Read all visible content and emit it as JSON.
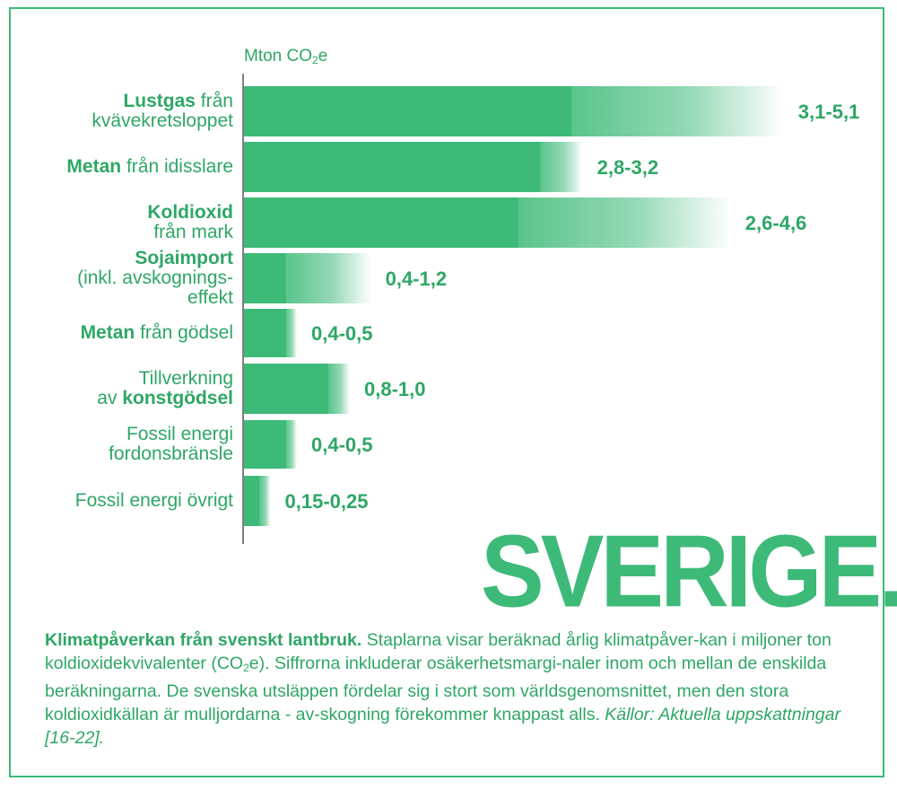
{
  "colors": {
    "accent": "#3dba78",
    "accent_dark": "#2ea765",
    "range": "#7fcf9f"
  },
  "unit_label": {
    "prefix": "Mton CO",
    "sub": "2",
    "suffix": "e"
  },
  "headline": "SVERIGE.",
  "chart_data": {
    "type": "bar",
    "orientation": "horizontal",
    "unit": "Mton CO2e",
    "x_range": [
      0,
      5.2
    ],
    "categories": [
      {
        "bold": "Lustgas",
        "pre": "",
        "post": " från",
        "line2": "kvävekretsloppet",
        "line3": "",
        "low": 3.1,
        "high": 5.1,
        "label": "3,1-5,1"
      },
      {
        "bold": "Metan",
        "pre": "",
        "post": " från idisslare",
        "line2": "",
        "line3": "",
        "low": 2.8,
        "high": 3.2,
        "label": "2,8-3,2"
      },
      {
        "bold": "Koldioxid",
        "pre": "",
        "post": "",
        "line2": "från mark",
        "line3": "",
        "low": 2.6,
        "high": 4.6,
        "label": "2,6-4,6"
      },
      {
        "bold": "Sojaimport",
        "pre": "",
        "post": "",
        "line2": "(inkl. avskognings-",
        "line3": "effekt",
        "low": 0.4,
        "high": 1.2,
        "label": "0,4-1,2"
      },
      {
        "bold": "Metan",
        "pre": "",
        "post": " från gödsel",
        "line2": "",
        "line3": "",
        "low": 0.4,
        "high": 0.5,
        "label": "0,4-0,5"
      },
      {
        "bold": "",
        "pre": "Tillverkning",
        "post": "",
        "line2": "av ",
        "line2bold": "konstgödsel",
        "line3": "",
        "low": 0.8,
        "high": 1.0,
        "label": "0,8-1,0"
      },
      {
        "bold": "",
        "pre": "Fossil energi",
        "post": "",
        "line2": "fordonsbränsle",
        "line3": "",
        "low": 0.4,
        "high": 0.5,
        "label": "0,4-0,5"
      },
      {
        "bold": "",
        "pre": "Fossil energi övrigt",
        "post": "",
        "line2": "",
        "line3": "",
        "low": 0.15,
        "high": 0.25,
        "label": "0,15-0,25"
      }
    ]
  },
  "caption": {
    "bold": "Klimatpåverkan från svenskt lantbruk.",
    "text1": " Staplarna visar beräknad årlig klimatpåver-kan i miljoner ton koldioxidekvivalenter (CO",
    "sub": "2",
    "text2": "e). Siffrorna inkluderar osäkerhetsmargi-naler inom och mellan de enskilda beräkningarna. De svenska utsläppen fördelar sig i stort som världsgenomsnittet, men den stora koldioxidkällan är mulljordarna - av-skogning förekommer knappast alls. ",
    "italic": "Källor: Aktuella uppskattningar [16-22]."
  }
}
